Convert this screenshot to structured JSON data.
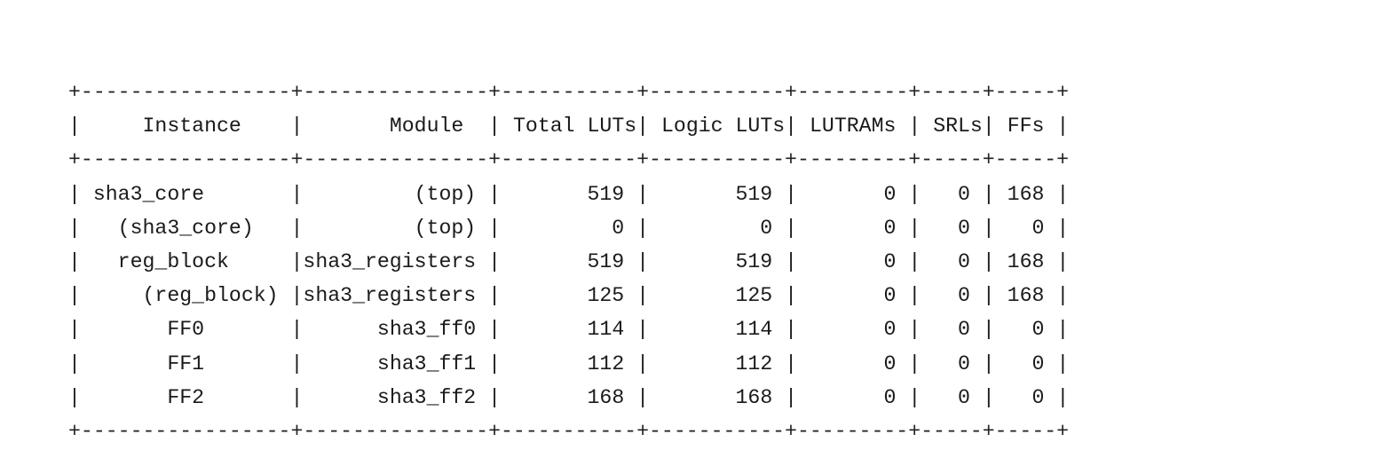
{
  "table": {
    "columns": [
      "Instance",
      "Module",
      "Total LUTs",
      "Logic LUTs",
      "LUTRAMs",
      "SRLs",
      "FFs"
    ],
    "rows": [
      [
        "sha3_core",
        "(top)",
        "519",
        "519",
        "0",
        "0",
        "168"
      ],
      [
        "(sha3_core)",
        "(top)",
        "0",
        "0",
        "0",
        "0",
        "0"
      ],
      [
        "reg_block",
        "sha3_registers",
        "519",
        "519",
        "0",
        "0",
        "168"
      ],
      [
        "(reg_block)",
        "sha3_registers",
        "125",
        "125",
        "0",
        "0",
        "168"
      ],
      [
        "FF0",
        "sha3_ff0",
        "114",
        "114",
        "0",
        "0",
        "0"
      ],
      [
        "FF1",
        "sha3_ff1",
        "112",
        "112",
        "0",
        "0",
        "0"
      ],
      [
        "FF2",
        "sha3_ff2",
        "168",
        "168",
        "0",
        "0",
        "0"
      ]
    ]
  }
}
